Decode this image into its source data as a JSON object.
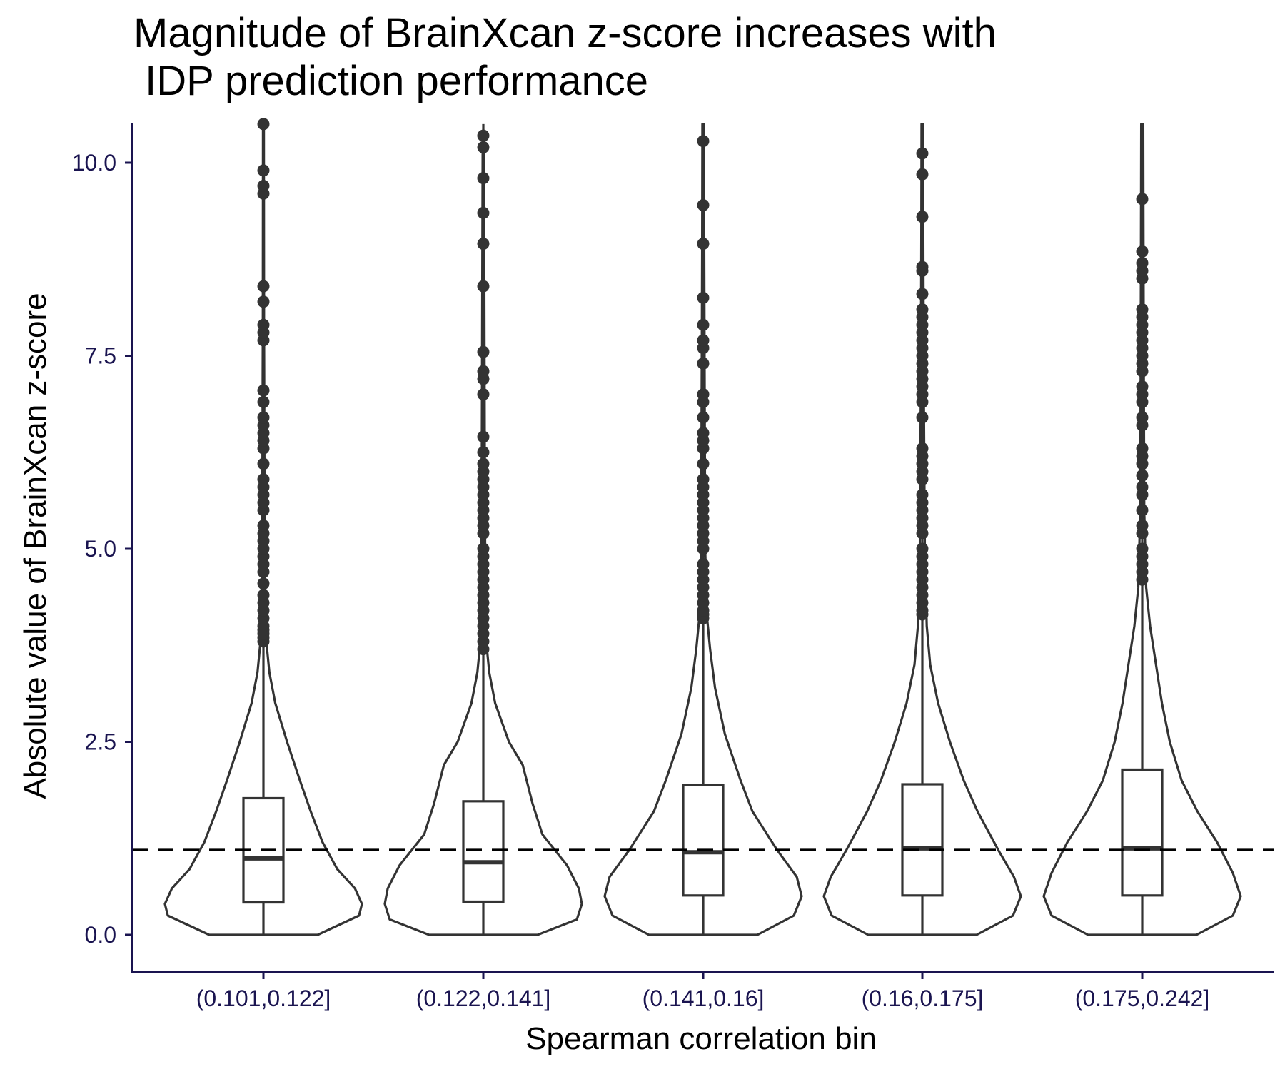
{
  "chart_data": {
    "type": "violin",
    "title_lines": [
      "Magnitude of BrainXcan z-score increases with",
      " IDP prediction performance"
    ],
    "xlabel": "Spearman correlation bin",
    "ylabel": "Absolute value of BrainXcan z-score",
    "ylim": [
      -0.5,
      10.5
    ],
    "yticks": [
      0.0,
      2.5,
      5.0,
      7.5,
      10.0
    ],
    "ytick_labels": [
      "0.0",
      "2.5",
      "5.0",
      "7.5",
      "10.0"
    ],
    "reference_line": {
      "y": 1.1,
      "style": "dashed"
    },
    "grid": false,
    "categories": [
      "(0.101,0.122]",
      "(0.122,0.141]",
      "(0.141,0.16]",
      "(0.16,0.175]",
      "(0.175,0.242]"
    ],
    "violins": [
      {
        "density": [
          [
            0,
            0.55
          ],
          [
            0.25,
            0.97
          ],
          [
            0.4,
            1.0
          ],
          [
            0.6,
            0.93
          ],
          [
            0.85,
            0.75
          ],
          [
            1.2,
            0.6
          ],
          [
            1.6,
            0.48
          ],
          [
            2.0,
            0.37
          ],
          [
            2.5,
            0.24
          ],
          [
            3.0,
            0.12
          ],
          [
            3.4,
            0.06
          ],
          [
            3.8,
            0.03
          ],
          [
            4.5,
            0.015
          ],
          [
            6.0,
            0.01
          ],
          [
            8.0,
            0.006
          ],
          [
            10.5,
            0.004
          ]
        ]
      },
      {
        "density": [
          [
            0,
            0.55
          ],
          [
            0.2,
            0.95
          ],
          [
            0.4,
            1.0
          ],
          [
            0.6,
            0.97
          ],
          [
            0.9,
            0.85
          ],
          [
            1.3,
            0.6
          ],
          [
            1.7,
            0.5
          ],
          [
            2.2,
            0.4
          ],
          [
            2.5,
            0.26
          ],
          [
            3.0,
            0.12
          ],
          [
            3.4,
            0.06
          ],
          [
            3.8,
            0.03
          ],
          [
            4.5,
            0.02
          ],
          [
            6.0,
            0.015
          ],
          [
            8.5,
            0.01
          ],
          [
            10.4,
            0.006
          ]
        ]
      },
      {
        "density": [
          [
            0,
            0.55
          ],
          [
            0.25,
            0.92
          ],
          [
            0.5,
            1.0
          ],
          [
            0.75,
            0.95
          ],
          [
            1.1,
            0.75
          ],
          [
            1.6,
            0.5
          ],
          [
            2.0,
            0.38
          ],
          [
            2.6,
            0.22
          ],
          [
            3.2,
            0.12
          ],
          [
            3.7,
            0.07
          ],
          [
            4.1,
            0.04
          ],
          [
            5.0,
            0.02
          ],
          [
            7.0,
            0.015
          ],
          [
            9.0,
            0.01
          ],
          [
            10.5,
            0.008
          ]
        ]
      },
      {
        "density": [
          [
            0,
            0.55
          ],
          [
            0.25,
            0.92
          ],
          [
            0.5,
            1.0
          ],
          [
            0.75,
            0.93
          ],
          [
            1.1,
            0.77
          ],
          [
            1.6,
            0.56
          ],
          [
            2.0,
            0.42
          ],
          [
            2.5,
            0.28
          ],
          [
            3.0,
            0.16
          ],
          [
            3.5,
            0.08
          ],
          [
            4.0,
            0.045
          ],
          [
            5.0,
            0.025
          ],
          [
            7.0,
            0.015
          ],
          [
            9.0,
            0.01
          ],
          [
            10.5,
            0.008
          ]
        ]
      },
      {
        "density": [
          [
            0,
            0.55
          ],
          [
            0.25,
            0.92
          ],
          [
            0.5,
            1.0
          ],
          [
            0.8,
            0.92
          ],
          [
            1.2,
            0.76
          ],
          [
            1.6,
            0.56
          ],
          [
            2.0,
            0.4
          ],
          [
            2.5,
            0.28
          ],
          [
            3.0,
            0.2
          ],
          [
            3.5,
            0.14
          ],
          [
            4.0,
            0.08
          ],
          [
            4.5,
            0.04
          ],
          [
            5.5,
            0.02
          ],
          [
            7.5,
            0.015
          ],
          [
            10.5,
            0.01
          ]
        ]
      }
    ],
    "boxes": [
      {
        "q1": 0.42,
        "median": 0.99,
        "q3": 1.77,
        "whisker_low": 0.0,
        "whisker_high": 10.5
      },
      {
        "q1": 0.43,
        "median": 0.94,
        "q3": 1.73,
        "whisker_low": 0.0,
        "whisker_high": 10.5
      },
      {
        "q1": 0.51,
        "median": 1.07,
        "q3": 1.94,
        "whisker_low": 0.0,
        "whisker_high": 10.5
      },
      {
        "q1": 0.51,
        "median": 1.12,
        "q3": 1.95,
        "whisker_low": 0.0,
        "whisker_high": 10.5
      },
      {
        "q1": 0.51,
        "median": 1.12,
        "q3": 2.14,
        "whisker_low": 0.0,
        "whisker_high": 10.5
      }
    ],
    "outliers": [
      [
        3.8,
        3.85,
        3.9,
        3.95,
        4.0,
        4.1,
        4.2,
        4.3,
        4.4,
        4.55,
        4.7,
        4.8,
        4.9,
        5.0,
        5.1,
        5.2,
        5.3,
        5.5,
        5.6,
        5.7,
        5.8,
        5.9,
        6.1,
        6.3,
        6.4,
        6.5,
        6.6,
        6.7,
        6.9,
        7.05,
        7.7,
        7.8,
        7.9,
        8.2,
        8.4,
        9.6,
        9.7,
        9.9,
        10.5
      ],
      [
        3.7,
        3.8,
        3.9,
        4.0,
        4.1,
        4.2,
        4.3,
        4.4,
        4.5,
        4.6,
        4.7,
        4.8,
        4.9,
        5.0,
        5.2,
        5.3,
        5.4,
        5.5,
        5.6,
        5.7,
        5.8,
        5.9,
        6.0,
        6.1,
        6.25,
        6.45,
        7.0,
        7.2,
        7.3,
        7.55,
        8.4,
        8.95,
        9.35,
        9.8,
        10.2,
        10.35
      ],
      [
        4.1,
        4.15,
        4.2,
        4.3,
        4.4,
        4.5,
        4.6,
        4.7,
        4.8,
        5.0,
        5.1,
        5.2,
        5.3,
        5.4,
        5.5,
        5.6,
        5.7,
        5.8,
        5.9,
        6.1,
        6.3,
        6.4,
        6.5,
        6.7,
        6.9,
        7.0,
        7.4,
        7.6,
        7.7,
        7.9,
        8.25,
        8.95,
        9.45,
        10.28
      ],
      [
        4.15,
        4.2,
        4.3,
        4.4,
        4.5,
        4.6,
        4.7,
        4.8,
        4.9,
        5.0,
        5.2,
        5.3,
        5.4,
        5.5,
        5.6,
        5.7,
        5.9,
        6.0,
        6.1,
        6.2,
        6.3,
        6.7,
        6.9,
        7.0,
        7.1,
        7.2,
        7.3,
        7.4,
        7.5,
        7.6,
        7.7,
        7.8,
        7.9,
        8.0,
        8.1,
        8.3,
        8.6,
        8.65,
        9.3,
        9.85,
        10.12
      ],
      [
        4.6,
        4.7,
        4.8,
        4.9,
        5.0,
        5.2,
        5.3,
        5.5,
        5.7,
        5.8,
        5.95,
        6.1,
        6.2,
        6.3,
        6.6,
        6.7,
        6.9,
        7.0,
        7.1,
        7.3,
        7.4,
        7.5,
        7.6,
        7.7,
        7.8,
        7.9,
        8.0,
        8.1,
        8.5,
        8.6,
        8.7,
        8.85,
        9.53
      ]
    ],
    "colors": {
      "line": "#333333",
      "axis": "#1a1450",
      "tick_text": "#1a1450"
    }
  }
}
